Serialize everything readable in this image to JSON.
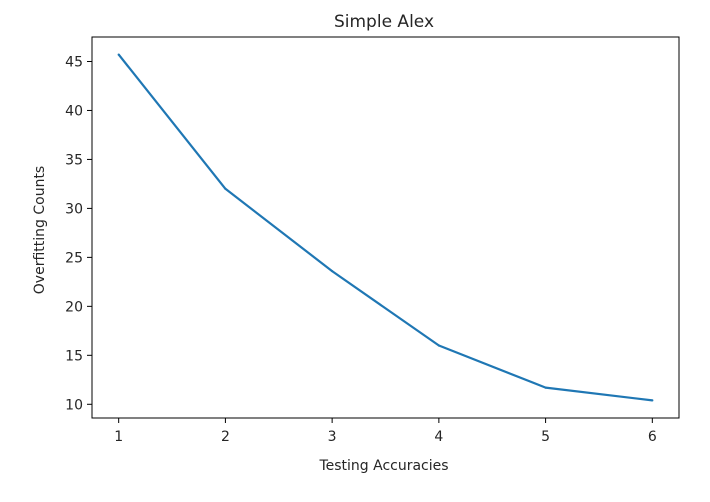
{
  "chart_data": {
    "type": "line",
    "title": "Simple Alex",
    "xlabel": "Testing Accuracies",
    "ylabel": "Overfitting Counts",
    "x": [
      1,
      2,
      3,
      4,
      5,
      6
    ],
    "series": [
      {
        "values": [
          45.7,
          32.0,
          23.6,
          16.0,
          11.7,
          10.4
        ],
        "color": "#1f77b4"
      }
    ],
    "xlim": [
      0.75,
      6.25
    ],
    "ylim": [
      8.6,
      47.5
    ],
    "xticks": [
      "1",
      "2",
      "3",
      "4",
      "5",
      "6"
    ],
    "yticks": [
      "10",
      "15",
      "20",
      "25",
      "30",
      "35",
      "40",
      "45"
    ],
    "grid": false
  }
}
